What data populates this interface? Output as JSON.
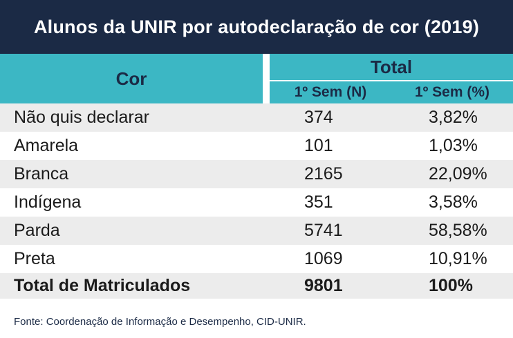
{
  "title": "Alunos da UNIR por autodeclaração de cor (2019)",
  "header": {
    "cor": "Cor",
    "total": "Total",
    "col_n": "1º Sem (N)",
    "col_pct": "1º Sem (%)"
  },
  "rows": [
    {
      "cor": "Não quis declarar",
      "n": "374",
      "pct": "3,82%"
    },
    {
      "cor": "Amarela",
      "n": "101",
      "pct": "1,03%"
    },
    {
      "cor": "Branca",
      "n": "2165",
      "pct": "22,09%"
    },
    {
      "cor": "Indígena",
      "n": "351",
      "pct": "3,58%"
    },
    {
      "cor": "Parda",
      "n": "5741",
      "pct": "58,58%"
    },
    {
      "cor": "Preta",
      "n": "1069",
      "pct": "10,91%"
    }
  ],
  "total_row": {
    "cor": "Total de Matriculados",
    "n": "9801",
    "pct": "100%"
  },
  "source": "Fonte: Coordenação de Informação e Desempenho, CID-UNIR.",
  "colors": {
    "title_bg": "#1b2a45",
    "header_bg": "#3cb7c4",
    "header_text": "#1b2a45",
    "row_shade": "#ececec"
  }
}
